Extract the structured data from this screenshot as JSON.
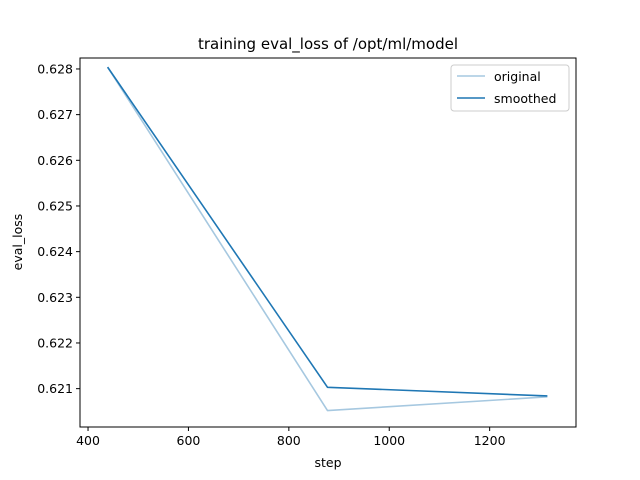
{
  "chart_data": {
    "type": "line",
    "title": "training eval_loss of /opt/ml/model",
    "xlabel": "step",
    "ylabel": "eval_loss",
    "xlim": [
      384,
      1372
    ],
    "ylim": [
      0.62016,
      0.62824
    ],
    "xticks": [
      400,
      600,
      800,
      1000,
      1200
    ],
    "xtick_labels": [
      "400",
      "600",
      "800",
      "1000",
      "1200"
    ],
    "yticks": [
      0.621,
      0.622,
      0.623,
      0.624,
      0.625,
      0.626,
      0.627,
      0.628
    ],
    "ytick_labels": [
      "0.621",
      "0.622",
      "0.623",
      "0.624",
      "0.625",
      "0.626",
      "0.627",
      "0.628"
    ],
    "grid": false,
    "legend_position": "top-right",
    "series": [
      {
        "name": "original",
        "color": "#a6c8e0",
        "x": [
          439,
          877,
          1315
        ],
        "y": [
          0.62804,
          0.62052,
          0.62082
        ]
      },
      {
        "name": "smoothed",
        "color": "#1f77b4",
        "x": [
          439,
          877,
          1315
        ],
        "y": [
          0.62804,
          0.62103,
          0.62084
        ]
      }
    ]
  }
}
